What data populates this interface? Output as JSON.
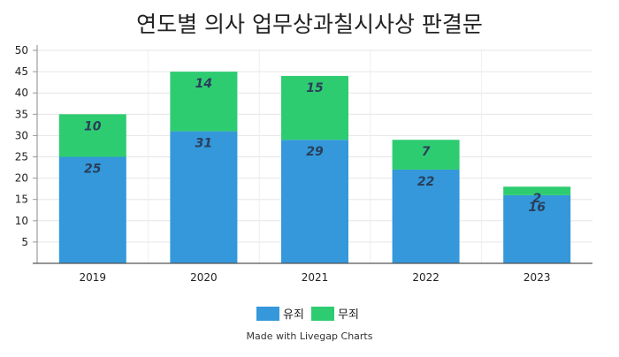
{
  "chart_data": {
    "type": "bar",
    "stacked": true,
    "title": "연도별 의사 업무상과칠시사상 판결문",
    "xlabel": "",
    "ylabel": "",
    "categories": [
      "2019",
      "2020",
      "2021",
      "2022",
      "2023"
    ],
    "series": [
      {
        "name": "유죄",
        "color": "#3498db",
        "values": [
          25,
          31,
          29,
          22,
          16
        ]
      },
      {
        "name": "무죄",
        "color": "#2ecc71",
        "values": [
          10,
          14,
          15,
          7,
          2
        ]
      }
    ],
    "ylim": [
      0,
      50
    ],
    "yticks": [
      5,
      10,
      15,
      20,
      25,
      30,
      35,
      40,
      45,
      50
    ],
    "grid": true,
    "legend_position": "bottom",
    "credit": "Made with Livegap Charts"
  }
}
